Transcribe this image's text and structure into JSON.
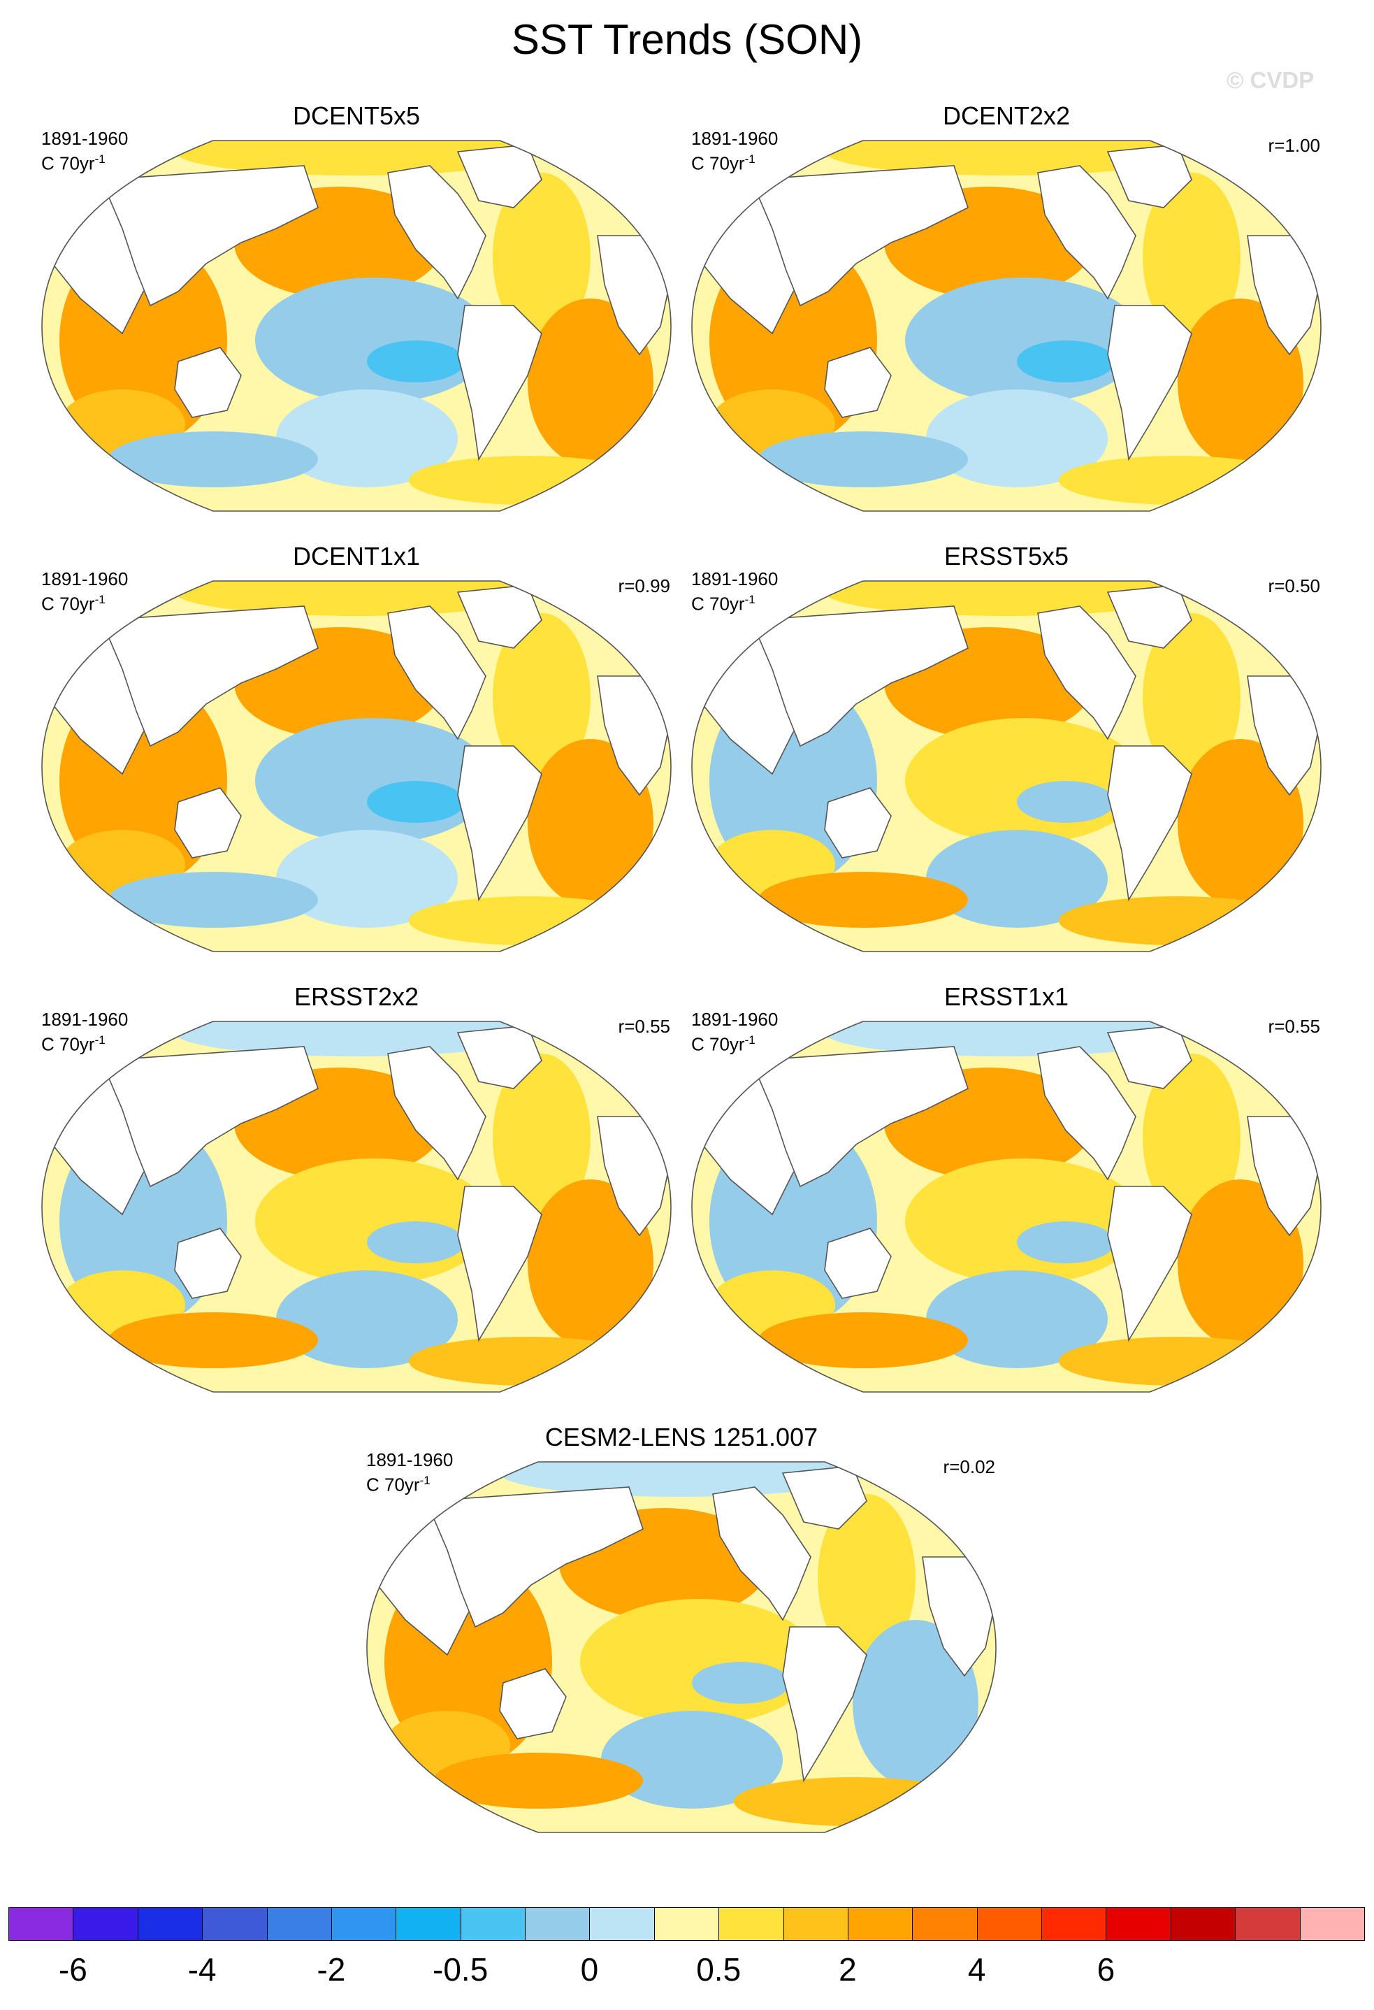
{
  "figure": {
    "title": "SST Trends (SON)",
    "watermark": "© CVDP"
  },
  "chart_data": {
    "type": "heatmap",
    "variable": "SST trend",
    "season": "SON",
    "panels": [
      {
        "title": "DCENT5x5",
        "period": "1891-1960",
        "units_base": "C 70yr",
        "units_exp": "-1",
        "r": "",
        "pattern": {
          "pacific": "cool",
          "atlantic": "warm",
          "indian": "warm",
          "southern": "mixed",
          "arctic": "warm"
        }
      },
      {
        "title": "DCENT2x2",
        "period": "1891-1960",
        "units_base": "C 70yr",
        "units_exp": "-1",
        "r": "r=1.00",
        "pattern": {
          "pacific": "cool",
          "atlantic": "warm",
          "indian": "warm",
          "southern": "mixed",
          "arctic": "warm"
        }
      },
      {
        "title": "DCENT1x1",
        "period": "1891-1960",
        "units_base": "C 70yr",
        "units_exp": "-1",
        "r": "r=0.99",
        "pattern": {
          "pacific": "cool",
          "atlantic": "warm",
          "indian": "warm",
          "southern": "mixed",
          "arctic": "warm"
        }
      },
      {
        "title": "ERSST5x5",
        "period": "1891-1960",
        "units_base": "C 70yr",
        "units_exp": "-1",
        "r": "r=0.50",
        "pattern": {
          "pacific": "mixed",
          "atlantic": "warm",
          "indian": "mixed",
          "southern": "warm",
          "arctic": "mixed"
        }
      },
      {
        "title": "ERSST2x2",
        "period": "1891-1960",
        "units_base": "C 70yr",
        "units_exp": "-1",
        "r": "r=0.55",
        "pattern": {
          "pacific": "mixed",
          "atlantic": "warm",
          "indian": "mixed",
          "southern": "warm",
          "arctic": "cool"
        }
      },
      {
        "title": "ERSST1x1",
        "period": "1891-1960",
        "units_base": "C 70yr",
        "units_exp": "-1",
        "r": "r=0.55",
        "pattern": {
          "pacific": "mixed",
          "atlantic": "warm",
          "indian": "mixed",
          "southern": "warm",
          "arctic": "cool"
        }
      },
      {
        "title": "CESM2-LENS 1251.007",
        "period": "1891-1960",
        "units_base": "C 70yr",
        "units_exp": "-1",
        "r": "r=0.02",
        "pattern": {
          "pacific": "mixed",
          "atlantic": "mixed",
          "indian": "warm",
          "southern": "warm",
          "arctic": "cool"
        }
      }
    ],
    "colorbar": {
      "colors": [
        "#8a2be2",
        "#3a1ae8",
        "#1a2ee8",
        "#3e5ad6",
        "#3a7fe6",
        "#2e95f0",
        "#12b2f2",
        "#48c3f2",
        "#94ccea",
        "#bde4f4",
        "#fff8a8",
        "#ffe23c",
        "#ffc21a",
        "#ffa400",
        "#ff8200",
        "#ff5c00",
        "#ff2a00",
        "#e60000",
        "#c40000",
        "#d43c3c",
        "#ffb2b2"
      ],
      "tick_labels": [
        "-6",
        "-4",
        "-2",
        "-0.5",
        "0",
        "0.5",
        "2",
        "4",
        "6"
      ],
      "tick_after_box": [
        1,
        3,
        5,
        7,
        9,
        11,
        13,
        15,
        17
      ]
    }
  }
}
